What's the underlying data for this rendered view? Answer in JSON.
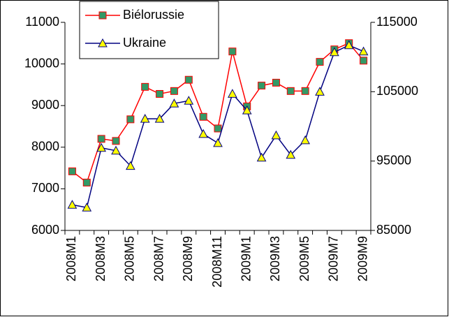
{
  "chart_data": {
    "type": "line",
    "categories": [
      "2008M1",
      null,
      "2008M3",
      null,
      "2008M5",
      null,
      "2008M7",
      null,
      "2008M9",
      null,
      "2008M11",
      null,
      "2009M1",
      null,
      "2009M3",
      null,
      "2009M5",
      null,
      "2009M7",
      null,
      "2009M9"
    ],
    "series": [
      {
        "name": "Biélorussie",
        "color": "#ff0000",
        "marker_color": "#339966",
        "marker": "square",
        "values": [
          7420,
          7150,
          8200,
          8150,
          8670,
          9450,
          9280,
          9350,
          9620,
          8730,
          8450,
          10300,
          8980,
          9480,
          9550,
          9350,
          9350,
          10050,
          10350,
          10500,
          10080
        ]
      },
      {
        "name": "Ukraine",
        "color": "#000080",
        "marker_color": "#ffff00",
        "marker": "triangle",
        "axis": "y2",
        "values": [
          88700,
          88300,
          96900,
          96500,
          94300,
          101100,
          101100,
          103300,
          103700,
          98900,
          97600,
          104700,
          102300,
          95500,
          98700,
          95900,
          98000,
          105000,
          110700,
          111700,
          110800
        ]
      }
    ],
    "ylim": [
      6000,
      11000
    ],
    "yticks": [
      6000,
      7000,
      8000,
      9000,
      10000,
      11000
    ],
    "y2lim": [
      85000,
      115000
    ],
    "y2ticks": [
      85000,
      95000,
      105000,
      115000
    ],
    "legend": "top-left"
  }
}
